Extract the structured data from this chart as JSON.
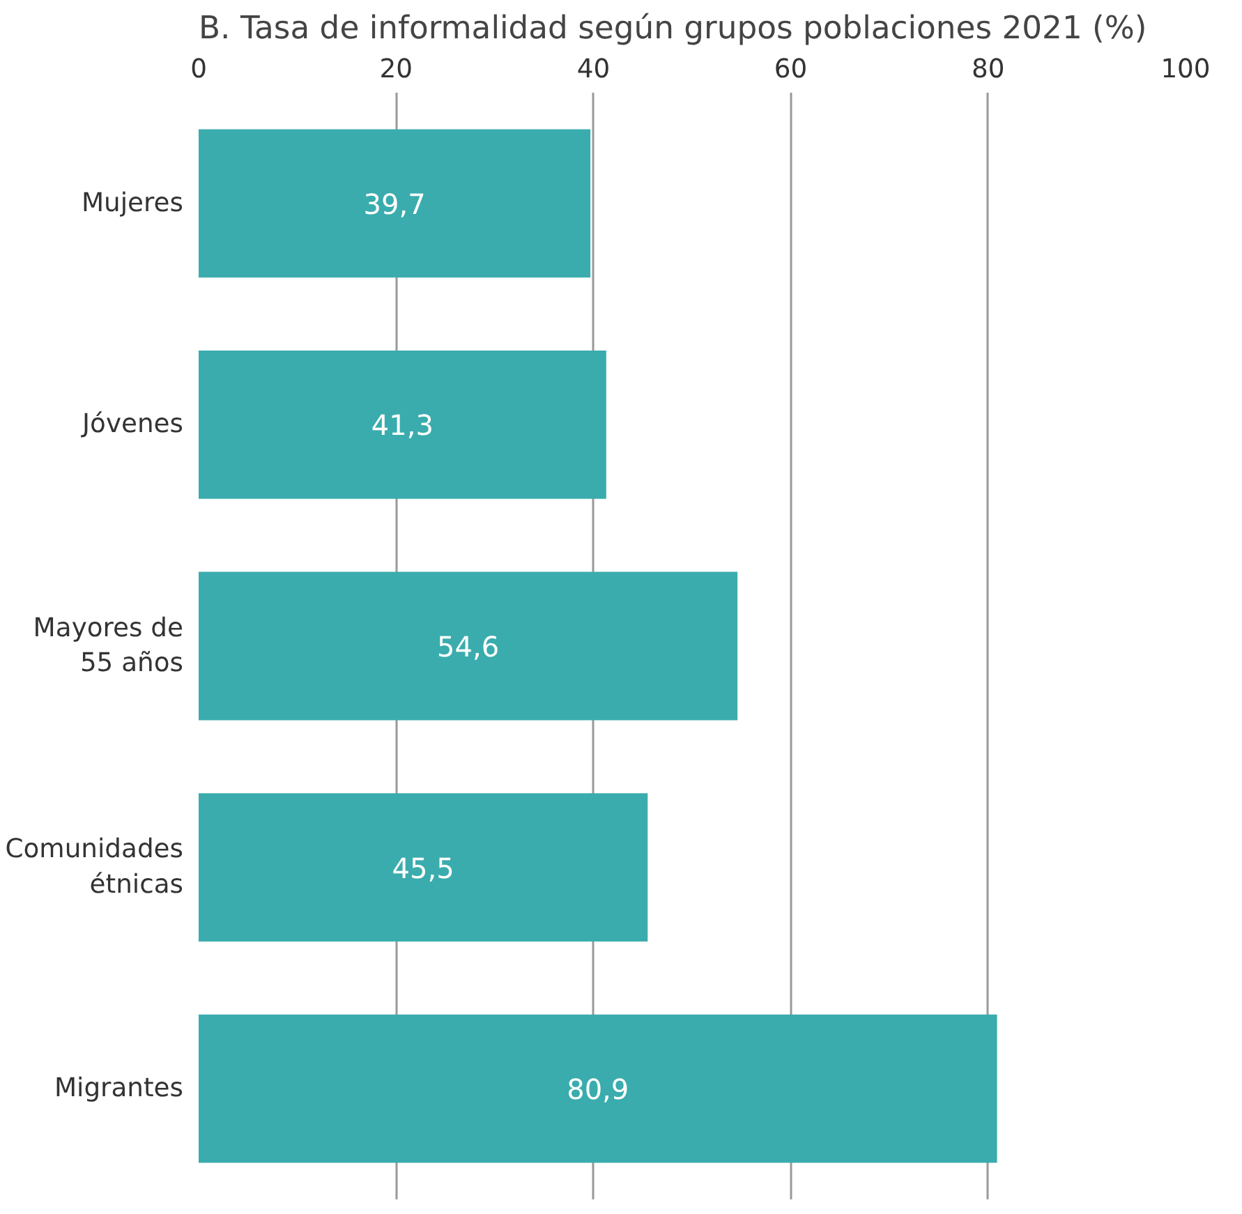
{
  "chart_data": {
    "type": "bar",
    "orientation": "horizontal",
    "title": "B. Tasa de informalidad según grupos poblaciones 2021 (%)",
    "categories": [
      "Mujeres",
      "Jóvenes",
      "Mayores de 55 años",
      "Comunidades étnicas",
      "Migrantes"
    ],
    "values": [
      39.7,
      41.3,
      54.6,
      45.5,
      80.9
    ],
    "value_labels": [
      "39,7",
      "41,3",
      "54,6",
      "45,5",
      "80,9"
    ],
    "color": "#3aacad",
    "xlim": [
      0,
      100
    ],
    "xticks": [
      0,
      20,
      40,
      60,
      80,
      100
    ],
    "grid": "x"
  }
}
